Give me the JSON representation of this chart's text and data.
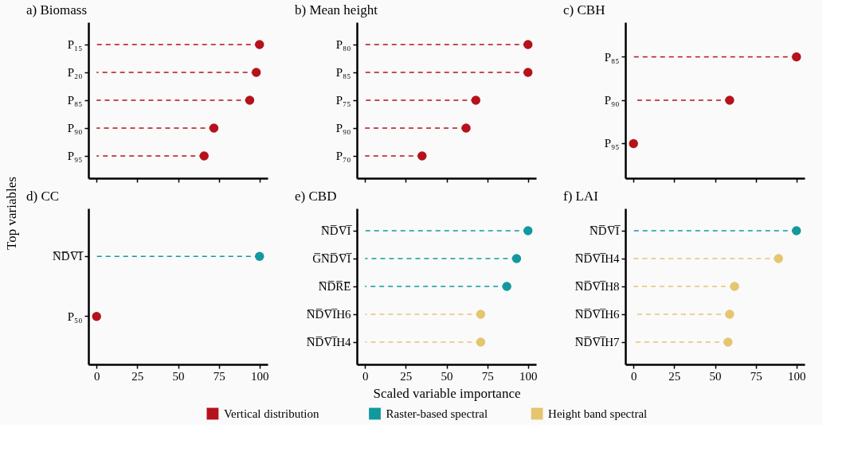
{
  "chart_data": [
    {
      "type": "lollipop",
      "orientation": "horizontal",
      "title": "a) Biomass",
      "ylabel": "Top variables",
      "categories": [
        "P₁₅",
        "P₂₀",
        "P₈₅",
        "P₉₀",
        "P₉₅"
      ],
      "series": [
        {
          "name": "Vertical distribution",
          "color": "#b5121b",
          "values": [
            100,
            98,
            94,
            72,
            66
          ]
        }
      ],
      "xlim": [
        -5,
        105
      ],
      "xticks": [
        0,
        25,
        50,
        75,
        100
      ],
      "tick_labels": "y",
      "grid": false,
      "legend": "bottom",
      "marker": "circle",
      "line_style": "dashed"
    },
    {
      "type": "lollipop",
      "orientation": "horizontal",
      "title": "b) Mean height",
      "categories": [
        "P₈₀",
        "P₈₅",
        "P₇₅",
        "P₉₀",
        "P₇₀"
      ],
      "series": [
        {
          "name": "Vertical distribution",
          "color": "#b5121b",
          "values": [
            100,
            100,
            68,
            62,
            35
          ]
        }
      ],
      "xlim": [
        -5,
        105
      ],
      "xticks": [
        0,
        25,
        50,
        75,
        100
      ],
      "tick_labels": "y",
      "grid": false,
      "legend": "bottom",
      "marker": "circle",
      "line_style": "dashed"
    },
    {
      "type": "lollipop",
      "orientation": "horizontal",
      "title": "c) CBH",
      "categories": [
        "P₈₅",
        "P₉₀",
        "P₉₅"
      ],
      "series": [
        {
          "name": "Vertical distribution",
          "color": "#b5121b",
          "values": [
            100,
            59,
            0
          ]
        }
      ],
      "xlim": [
        -5,
        105
      ],
      "xticks": [
        0,
        25,
        50,
        75,
        100
      ],
      "tick_labels": "y",
      "grid": false,
      "legend": "bottom",
      "marker": "circle",
      "line_style": "dashed"
    },
    {
      "type": "lollipop",
      "orientation": "horizontal",
      "title": "d) CC",
      "categories": [
        "N̅D̅V̅I̅",
        "P₅₀"
      ],
      "series": [
        {
          "name": "Raster-based spectral",
          "color": "#12999e",
          "values": [
            100,
            null
          ]
        },
        {
          "name": "Vertical distribution",
          "color": "#b5121b",
          "values": [
            null,
            0
          ]
        }
      ],
      "xlim": [
        -5,
        105
      ],
      "xticks": [
        0,
        25,
        50,
        75,
        100
      ],
      "grid": false,
      "legend": "bottom",
      "marker": "circle",
      "line_style": "dashed"
    },
    {
      "type": "lollipop",
      "orientation": "horizontal",
      "title": "e) CBD",
      "xlabel": "Scaled variable importance",
      "categories": [
        "N̅D̅V̅I̅",
        "G̅N̅D̅V̅I̅",
        "N̅D̅R̅E̅",
        "N̅D̅V̅I̅H6",
        "N̅D̅V̅I̅H4"
      ],
      "series": [
        {
          "name": "Raster-based spectral",
          "color": "#12999e",
          "values": [
            100,
            93,
            87,
            null,
            null
          ]
        },
        {
          "name": "Height band spectral",
          "color": "#e6c56f",
          "values": [
            null,
            null,
            null,
            71,
            71
          ]
        }
      ],
      "xlim": [
        -5,
        105
      ],
      "xticks": [
        0,
        25,
        50,
        75,
        100
      ],
      "grid": false,
      "legend": "bottom",
      "marker": "circle",
      "line_style": "dashed"
    },
    {
      "type": "lollipop",
      "orientation": "horizontal",
      "title": "f) LAI",
      "categories": [
        "N̅D̅V̅I̅",
        "N̅D̅V̅I̅H4",
        "N̅D̅V̅I̅H8",
        "N̅D̅V̅I̅H6",
        "N̅D̅V̅I̅H7"
      ],
      "series": [
        {
          "name": "Raster-based spectral",
          "color": "#12999e",
          "values": [
            100,
            null,
            null,
            null,
            null
          ]
        },
        {
          "name": "Height band spectral",
          "color": "#e6c56f",
          "values": [
            null,
            89,
            62,
            59,
            58
          ]
        }
      ],
      "xlim": [
        -5,
        105
      ],
      "xticks": [
        0,
        25,
        50,
        75,
        100
      ],
      "grid": false,
      "legend": "bottom",
      "marker": "circle",
      "line_style": "dashed"
    }
  ]
}
